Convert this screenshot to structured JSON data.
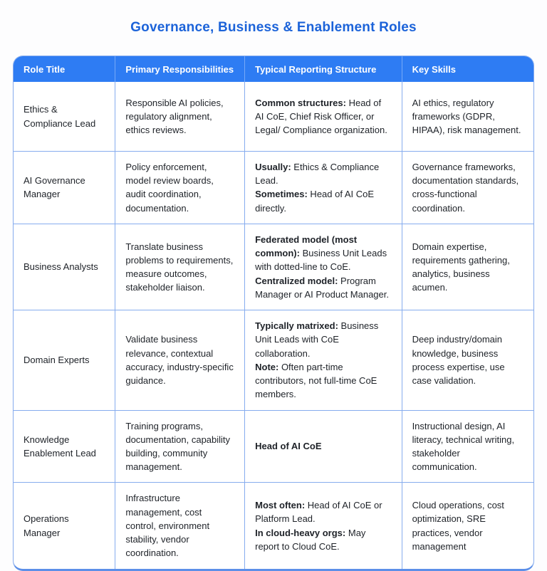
{
  "title": "Governance, Business & Enablement Roles",
  "colors": {
    "header_bg": "#2e7cf3",
    "title_text": "#1c63d9",
    "role_text": "#4a83df",
    "border": "#86acee",
    "bottom_border": "#5c8fe8",
    "body_text": "#1e2228"
  },
  "table": {
    "columns": [
      "Role Title",
      "Primary Responsibilities",
      "Typical Reporting Structure",
      "Key Skills"
    ],
    "rows": [
      {
        "role": "Ethics & Compliance Lead",
        "responsibilities": "Responsible AI policies, regulatory alignment, ethics reviews.",
        "reporting": [
          {
            "label": "Common structures:",
            "text": "Head of AI CoE, Chief Risk Officer, or Legal/ Compliance organization."
          }
        ],
        "skills": "AI ethics, regulatory frameworks (GDPR, HIPAA), risk management."
      },
      {
        "role": "AI Governance Manager",
        "responsibilities": "Policy enforcement, model review boards, audit coordination, documentation.",
        "reporting": [
          {
            "label": "Usually:",
            "text": "Ethics & Compliance Lead."
          },
          {
            "label": "Sometimes:",
            "text": "Head of AI CoE directly."
          }
        ],
        "skills": "Governance frameworks, documentation standards, cross-functional coordination."
      },
      {
        "role": "Business Analysts",
        "responsibilities": "Translate business problems to requirements, measure outcomes, stakeholder liaison.",
        "reporting": [
          {
            "label": "Federated model (most common):",
            "text": "Business Unit Leads with dotted-line to CoE."
          },
          {
            "label": "Centralized model:",
            "text": "Program Manager or AI Product Manager."
          }
        ],
        "skills": "Domain expertise, requirements gathering, analytics, business acumen."
      },
      {
        "role": "Domain Experts",
        "responsibilities": "Validate business relevance, contextual accuracy, industry-specific guidance.",
        "reporting": [
          {
            "label": "Typically matrixed:",
            "text": "Business Unit Leads with CoE collaboration."
          },
          {
            "label": "Note:",
            "text": "Often part-time contributors, not full-time CoE members."
          }
        ],
        "skills": "Deep industry/domain knowledge, business process expertise, use case validation."
      },
      {
        "role": "Knowledge Enablement Lead",
        "responsibilities": "Training programs, documentation, capability building, community management.",
        "reporting": [
          {
            "label": "Head of AI CoE",
            "text": ""
          }
        ],
        "skills": "Instructional design, AI literacy, technical writing, stakeholder communication."
      },
      {
        "role": "Operations Manager",
        "responsibilities": "Infrastructure management, cost control, environment stability, vendor coordination.",
        "reporting": [
          {
            "label": "Most often:",
            "text": "Head of AI CoE or Platform Lead."
          },
          {
            "label": "In cloud-heavy orgs:",
            "text": "May report to Cloud CoE."
          }
        ],
        "skills": "Cloud operations, cost optimization, SRE practices, vendor management"
      }
    ]
  }
}
